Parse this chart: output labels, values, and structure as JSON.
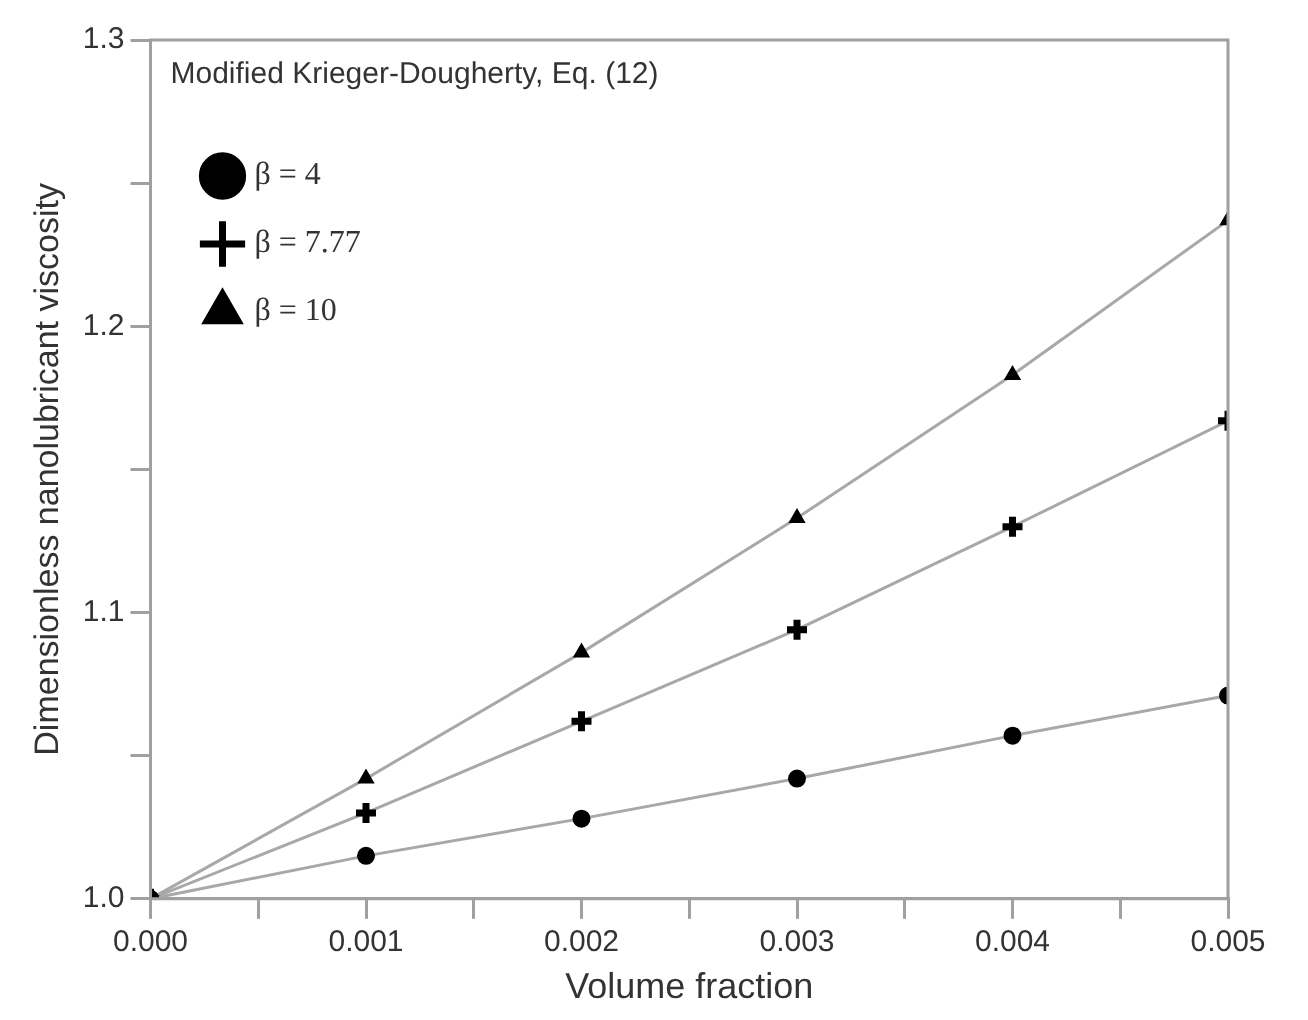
{
  "chart_data": {
    "type": "line",
    "xlabel": "Volume fraction",
    "ylabel": "Dimensionless nanolubricant viscosity",
    "legend_title": "Modified Krieger-Dougherty, Eq. (12)",
    "legend": "top left",
    "grid": false,
    "x": [
      0,
      0.001,
      0.002,
      0.003,
      0.004,
      0.005
    ],
    "xlim": [
      0,
      0.005
    ],
    "xticks": [
      {
        "value": 0,
        "label": "0.000"
      },
      {
        "value": 0.0005,
        "label": null
      },
      {
        "value": 0.001,
        "label": "0.001"
      },
      {
        "value": 0.0015,
        "label": null
      },
      {
        "value": 0.002,
        "label": "0.002"
      },
      {
        "value": 0.0025,
        "label": null
      },
      {
        "value": 0.003,
        "label": "0.003"
      },
      {
        "value": 0.0035,
        "label": null
      },
      {
        "value": 0.004,
        "label": "0.004"
      },
      {
        "value": 0.0045,
        "label": null
      },
      {
        "value": 0.005,
        "label": "0.005"
      }
    ],
    "ylim": [
      1.0,
      1.3
    ],
    "yticks": [
      {
        "value": 1.0,
        "label": "1.0"
      },
      {
        "value": 1.05,
        "label": null
      },
      {
        "value": 1.1,
        "label": "1.1"
      },
      {
        "value": 1.15,
        "label": null
      },
      {
        "value": 1.2,
        "label": "1.2"
      },
      {
        "value": 1.25,
        "label": null
      },
      {
        "value": 1.3,
        "label": "1.3"
      }
    ],
    "series": [
      {
        "name": "β = 4",
        "color": "#000000",
        "marker": "circle",
        "values": [
          1.0,
          1.015,
          1.028,
          1.042,
          1.057,
          1.071
        ]
      },
      {
        "name": "β = 7.77",
        "color": "#000000",
        "marker": "cross",
        "values": [
          1.0,
          1.03,
          1.062,
          1.094,
          1.13,
          1.167
        ]
      },
      {
        "name": "β = 10",
        "color": "#000000",
        "marker": "triangle",
        "values": [
          1.0,
          1.042,
          1.086,
          1.133,
          1.183,
          1.237
        ]
      }
    ]
  }
}
